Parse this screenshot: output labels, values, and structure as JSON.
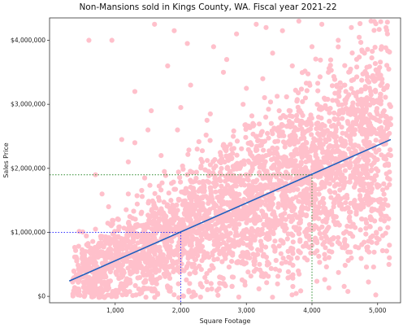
{
  "chart_data": {
    "type": "scatter",
    "title": "Non-Mansions sold in Kings County, WA. Fiscal year 2021-22",
    "xlabel": "Square Footage",
    "ylabel": "Sales Price",
    "xlim": [
      0,
      5350
    ],
    "ylim": [
      -100000,
      4350000
    ],
    "x_ticks": [
      1000,
      2000,
      3000,
      4000,
      5000
    ],
    "x_tick_labels": [
      "1,000",
      "2,000",
      "3,000",
      "4,000",
      "5,000"
    ],
    "y_ticks": [
      0,
      1000000,
      2000000,
      3000000,
      4000000
    ],
    "y_tick_labels": [
      "$0",
      "$1,000,000",
      "$2,000,000",
      "$3,000,000",
      "$4,000,000"
    ],
    "grid": false,
    "point_color": "#ffc0cb",
    "series": [
      {
        "points": [
          [
            450,
            250000
          ],
          [
            550,
            400000
          ],
          [
            600,
            700000
          ],
          [
            700,
            1050000
          ],
          [
            800,
            300000
          ],
          [
            850,
            600000
          ],
          [
            900,
            1400000
          ],
          [
            950,
            850000
          ],
          [
            1000,
            550000
          ],
          [
            1050,
            1200000
          ],
          [
            1100,
            2450000
          ],
          [
            1100,
            300000
          ],
          [
            1150,
            900000
          ],
          [
            1200,
            1600000
          ],
          [
            1250,
            650000
          ],
          [
            1300,
            3200000
          ],
          [
            1350,
            1100000
          ],
          [
            1400,
            450000
          ],
          [
            1450,
            1850000
          ],
          [
            1500,
            800000
          ],
          [
            1550,
            2900000
          ],
          [
            1600,
            1300000
          ],
          [
            1650,
            600000
          ],
          [
            1700,
            2200000
          ],
          [
            1750,
            1000000
          ],
          [
            1800,
            3600000
          ],
          [
            1850,
            1500000
          ],
          [
            1900,
            700000
          ],
          [
            1950,
            2600000
          ],
          [
            2000,
            1150000
          ],
          [
            2050,
            400000
          ],
          [
            2100,
            1900000
          ],
          [
            2150,
            3300000
          ],
          [
            2200,
            900000
          ],
          [
            2250,
            2300000
          ],
          [
            2300,
            1400000
          ],
          [
            2350,
            600000
          ],
          [
            2400,
            2750000
          ],
          [
            2450,
            1700000
          ],
          [
            2500,
            3900000
          ],
          [
            2550,
            1050000
          ],
          [
            2600,
            2100000
          ],
          [
            2650,
            3500000
          ],
          [
            2700,
            800000
          ],
          [
            2750,
            1600000
          ],
          [
            2800,
            2500000
          ],
          [
            2850,
            4100000
          ],
          [
            2900,
            1250000
          ],
          [
            2950,
            3000000
          ],
          [
            3000,
            1900000
          ],
          [
            3050,
            600000
          ],
          [
            3100,
            2700000
          ],
          [
            3150,
            4250000
          ],
          [
            3200,
            1500000
          ],
          [
            3250,
            3400000
          ],
          [
            3300,
            2200000
          ],
          [
            3350,
            900000
          ],
          [
            3400,
            3800000
          ],
          [
            3450,
            1750000
          ],
          [
            3500,
            2900000
          ],
          [
            3550,
            4150000
          ],
          [
            3600,
            1200000
          ],
          [
            3650,
            2400000
          ],
          [
            3700,
            3600000
          ],
          [
            3750,
            2000000
          ],
          [
            3800,
            4300000
          ],
          [
            3850,
            1400000
          ],
          [
            3900,
            3100000
          ],
          [
            3950,
            2600000
          ],
          [
            4000,
            3900000
          ],
          [
            4050,
            1600000
          ],
          [
            4100,
            2800000
          ],
          [
            4150,
            4250000
          ],
          [
            4200,
            2100000
          ],
          [
            4250,
            3500000
          ],
          [
            4300,
            1300000
          ],
          [
            4350,
            2500000
          ],
          [
            4400,
            4000000
          ],
          [
            4450,
            1800000
          ],
          [
            4500,
            3300000
          ],
          [
            4550,
            2700000
          ],
          [
            4600,
            4200000
          ],
          [
            4650,
            1500000
          ],
          [
            4700,
            3000000
          ],
          [
            4750,
            2300000
          ],
          [
            4800,
            3800000
          ],
          [
            4850,
            1900000
          ],
          [
            4900,
            4300000
          ],
          [
            4950,
            2600000
          ],
          [
            5000,
            3500000
          ],
          [
            5050,
            1200000
          ],
          [
            5100,
            2900000
          ],
          [
            5150,
            4100000
          ],
          [
            5200,
            2200000
          ],
          [
            5180,
            800000
          ],
          [
            4980,
            1000000
          ],
          [
            4600,
            600000
          ],
          [
            3700,
            700000
          ],
          [
            3200,
            500000
          ],
          [
            2800,
            300000
          ],
          [
            2300,
            200000
          ],
          [
            1800,
            150000
          ],
          [
            1400,
            100000
          ],
          [
            1000,
            50000
          ],
          [
            600,
            4000000
          ],
          [
            950,
            4000000
          ],
          [
            1600,
            4250000
          ],
          [
            2100,
            3950000
          ],
          [
            1900,
            4150000
          ],
          [
            1300,
            2400000
          ],
          [
            800,
            1600000
          ],
          [
            700,
            1900000
          ],
          [
            1200,
            2100000
          ],
          [
            1500,
            2600000
          ],
          [
            2000,
            2950000
          ],
          [
            2700,
            3700000
          ],
          [
            3300,
            4200000
          ],
          [
            3600,
            2800000
          ],
          [
            3000,
            3250000
          ],
          [
            2450,
            2850000
          ],
          [
            1750,
            1950000
          ]
        ]
      }
    ],
    "regression_line": {
      "x": [
        300,
        5200
      ],
      "y": [
        240000,
        2450000
      ],
      "color": "#1f5fbf"
    },
    "reference_lines": [
      {
        "x": 2000,
        "y": 1000000,
        "color": "#3333ff"
      },
      {
        "x": 4000,
        "y": 1900000,
        "color": "#2e8b2e"
      }
    ]
  }
}
